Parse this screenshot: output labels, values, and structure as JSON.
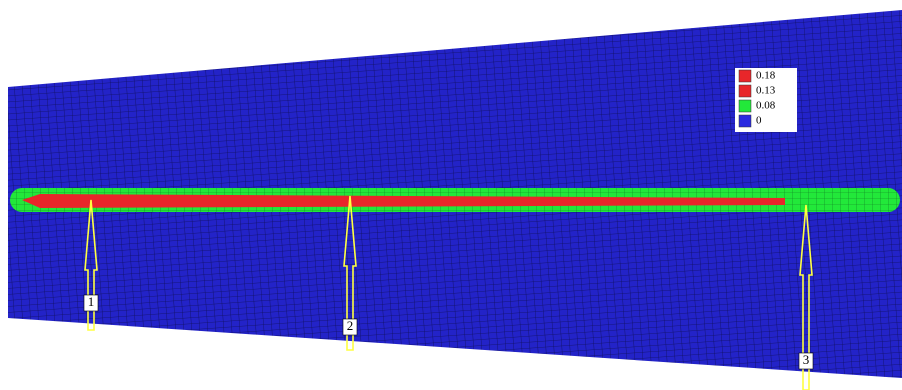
{
  "legend": {
    "items": [
      {
        "label": "0.18",
        "color": "#e8262a"
      },
      {
        "label": "0.13",
        "color": "#e8262a"
      },
      {
        "label": "0.08",
        "color": "#22e83a"
      },
      {
        "label": "0",
        "color": "#2a2ae0"
      }
    ]
  },
  "markers": [
    {
      "label": "1"
    },
    {
      "label": "2"
    },
    {
      "label": "3"
    }
  ]
}
